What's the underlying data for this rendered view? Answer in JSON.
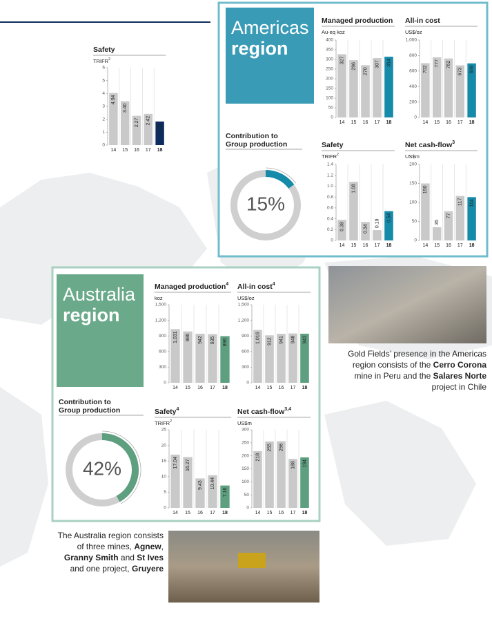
{
  "chart_data": [
    {
      "type": "bar",
      "title": "Safety",
      "unit": "TRIFR",
      "unit_note": "2",
      "categories": [
        "14",
        "15",
        "16",
        "17",
        "18"
      ],
      "values": [
        4.04,
        3.4,
        2.27,
        2.42,
        1.83
      ],
      "value_labels": [
        "4.04",
        "3.40",
        "2.27",
        "2.42",
        "1.83"
      ],
      "colors": [
        "#c9c9c9",
        "#c9c9c9",
        "#c9c9c9",
        "#c9c9c9",
        "#0d2c5e"
      ],
      "ylim": [
        0,
        6
      ],
      "yticks": [
        0,
        1,
        2,
        3,
        4,
        5,
        6
      ]
    },
    {
      "type": "bar",
      "title": "Managed production",
      "unit": "Au-eq koz",
      "categories": [
        "14",
        "15",
        "16",
        "17",
        "18"
      ],
      "values": [
        327,
        296,
        270,
        307,
        314
      ],
      "colors": [
        "#c9c9c9",
        "#c9c9c9",
        "#c9c9c9",
        "#c9c9c9",
        "#168aa9"
      ],
      "ylim": [
        0,
        400
      ],
      "yticks": [
        0,
        50,
        100,
        150,
        200,
        250,
        300,
        350,
        400
      ]
    },
    {
      "type": "bar",
      "title": "All-in cost",
      "unit": "US$/oz",
      "categories": [
        "14",
        "15",
        "16",
        "17",
        "18"
      ],
      "values": [
        702,
        777,
        762,
        673,
        699
      ],
      "colors": [
        "#c9c9c9",
        "#c9c9c9",
        "#c9c9c9",
        "#c9c9c9",
        "#168aa9"
      ],
      "ylim": [
        0,
        1000
      ],
      "yticks": [
        0,
        200,
        400,
        600,
        800,
        {
          "value": 1000,
          "label": "1,000"
        }
      ]
    },
    {
      "type": "donut",
      "title_lines": [
        "Contribution to",
        "Group production"
      ],
      "values": [
        15
      ],
      "value_labels": [
        "15%"
      ],
      "color": "#168aa9",
      "ylim": [
        0,
        100
      ]
    },
    {
      "type": "bar",
      "title": "Safety",
      "unit": "TRIFR",
      "unit_note": "2",
      "categories": [
        "14",
        "15",
        "16",
        "17",
        "18"
      ],
      "values": [
        0.38,
        1.08,
        0.34,
        0.19,
        0.54
      ],
      "colors": [
        "#c9c9c9",
        "#c9c9c9",
        "#c9c9c9",
        "#c9c9c9",
        "#168aa9"
      ],
      "ylim": [
        0,
        1.4
      ],
      "yticks": [
        0,
        0.2,
        0.4,
        0.6,
        0.8,
        {
          "value": 1,
          "label": "1.0"
        },
        1.2,
        1.4
      ]
    },
    {
      "type": "bar",
      "title": "Net cash-flow",
      "title_note": "3",
      "unit": "US$m",
      "categories": [
        "14",
        "15",
        "16",
        "17",
        "18"
      ],
      "values": [
        150,
        35,
        77,
        117,
        114
      ],
      "colors": [
        "#c9c9c9",
        "#c9c9c9",
        "#c9c9c9",
        "#c9c9c9",
        "#168aa9"
      ],
      "ylim": [
        0,
        200
      ],
      "yticks": [
        0,
        50,
        100,
        150,
        200
      ]
    },
    {
      "type": "bar",
      "title": "Managed production",
      "title_note": "4",
      "unit": "koz",
      "categories": [
        "14",
        "15",
        "16",
        "17",
        "18"
      ],
      "values": [
        1031,
        986,
        942,
        935,
        896
      ],
      "value_labels": [
        "1,031",
        "986",
        "942",
        "935",
        "896"
      ],
      "colors": [
        "#c9c9c9",
        "#c9c9c9",
        "#c9c9c9",
        "#c9c9c9",
        "#5e9f80"
      ],
      "ylim": [
        0,
        1500
      ],
      "yticks": [
        0,
        300,
        600,
        900,
        {
          "value": 1200,
          "label": "1,200"
        },
        {
          "value": 1500,
          "label": "1,500"
        }
      ]
    },
    {
      "type": "bar",
      "title": "All-in cost",
      "title_note": "4",
      "unit": "US$/oz",
      "categories": [
        "14",
        "15",
        "16",
        "17",
        "18"
      ],
      "values": [
        1016,
        912,
        941,
        948,
        943
      ],
      "value_labels": [
        "1,016",
        "912",
        "941",
        "948",
        "943"
      ],
      "colors": [
        "#c9c9c9",
        "#c9c9c9",
        "#c9c9c9",
        "#c9c9c9",
        "#5e9f80"
      ],
      "ylim": [
        0,
        1500
      ],
      "yticks": [
        0,
        300,
        600,
        900,
        {
          "value": 1200,
          "label": "1,200"
        },
        {
          "value": 1500,
          "label": "1,500"
        }
      ]
    },
    {
      "type": "donut",
      "title_lines": [
        "Contribution to",
        "Group production"
      ],
      "values": [
        42
      ],
      "value_labels": [
        "42%"
      ],
      "color": "#5e9f80",
      "ylim": [
        0,
        100
      ]
    },
    {
      "type": "bar",
      "title": "Safety",
      "title_note": "4",
      "unit": "TRIFR",
      "unit_note": "2",
      "categories": [
        "14",
        "15",
        "16",
        "17",
        "18"
      ],
      "values": [
        17.04,
        16.27,
        9.43,
        10.44,
        7.16
      ],
      "colors": [
        "#c9c9c9",
        "#c9c9c9",
        "#c9c9c9",
        "#c9c9c9",
        "#5e9f80"
      ],
      "ylim": [
        0,
        25
      ],
      "yticks": [
        0,
        5,
        10,
        15,
        20,
        25
      ]
    },
    {
      "type": "bar",
      "title": "Net cash-flow",
      "title_note": "3,4",
      "unit": "US$m",
      "categories": [
        "14",
        "15",
        "16",
        "17",
        "18"
      ],
      "values": [
        218,
        255,
        256,
        188,
        194
      ],
      "colors": [
        "#c9c9c9",
        "#c9c9c9",
        "#c9c9c9",
        "#c9c9c9",
        "#5e9f80"
      ],
      "ylim": [
        0,
        300
      ],
      "yticks": [
        0,
        50,
        100,
        150,
        200,
        250,
        300
      ]
    }
  ],
  "regions": {
    "americas": {
      "name": "Americas",
      "word": "region",
      "caption": [
        "Gold Fields’ presence in the Americas region consists of the ",
        "Cerro Corona",
        " mine in Peru and the ",
        "Salares Norte",
        " project in Chile"
      ]
    },
    "australia": {
      "name": "Australia",
      "word": "region",
      "caption": [
        "The Australia region consists of three mines, ",
        "Agnew",
        ", ",
        "Granny Smith",
        " and ",
        "St Ives",
        " and one project, ",
        "Gruyere"
      ]
    }
  }
}
